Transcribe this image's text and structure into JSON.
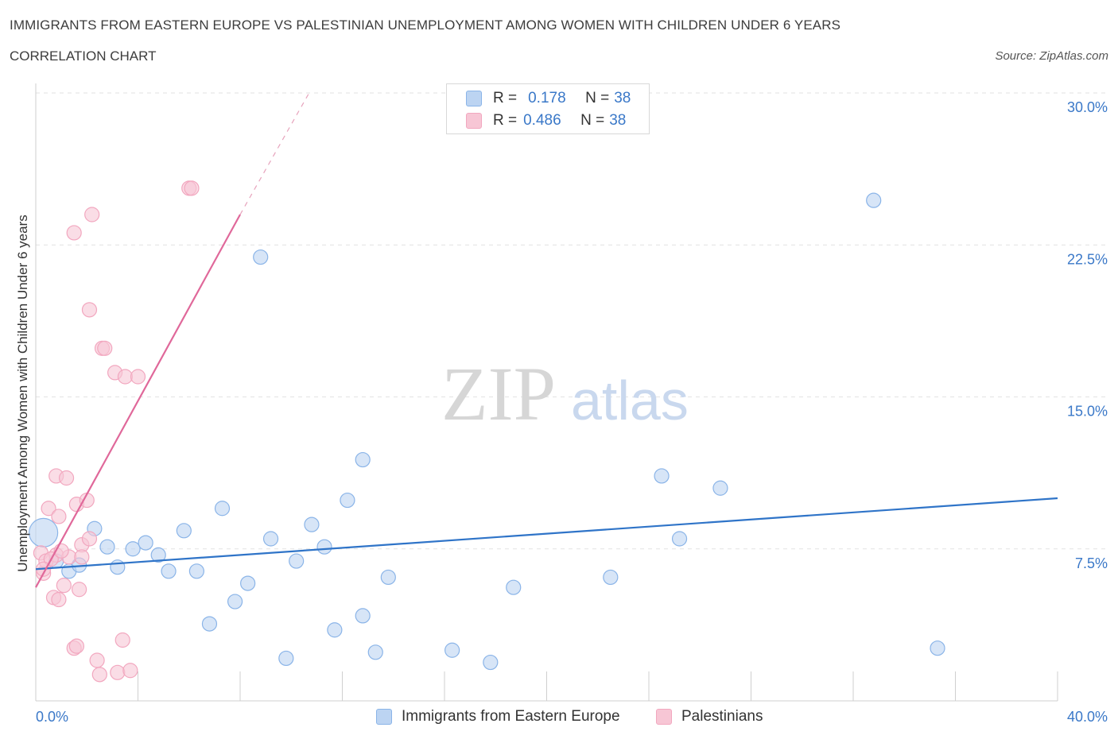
{
  "header": {
    "title": "IMMIGRANTS FROM EASTERN EUROPE VS PALESTINIAN UNEMPLOYMENT AMONG WOMEN WITH CHILDREN UNDER 6 YEARS",
    "subtitle": "CORRELATION CHART",
    "source": "Source: ZipAtlas.com"
  },
  "watermark": {
    "zip": "ZIP",
    "atlas": "atlas"
  },
  "legend": {
    "rows": [
      {
        "r_label": "R =",
        "r_value": "0.178",
        "n_label": "N =",
        "n_value": "38",
        "color": "#8ab4e8"
      },
      {
        "r_label": "R =",
        "r_value": "0.486",
        "n_label": "N =",
        "n_value": "38",
        "color": "#f2a7bf"
      }
    ]
  },
  "colors": {
    "blue_fill": "#bcd4f2",
    "blue_stroke": "#8ab4e8",
    "blue_line": "#2f74c8",
    "pink_fill": "#f7c6d5",
    "pink_stroke": "#f2a7bf",
    "pink_line": "#e0689a",
    "grid": "#e2e2e2",
    "tick_text": "#3a78c8"
  },
  "chart_data": {
    "type": "scatter",
    "title": "IMMIGRANTS FROM EASTERN EUROPE VS PALESTINIAN UNEMPLOYMENT AMONG WOMEN WITH CHILDREN UNDER 6 YEARS",
    "ylabel": "Unemployment Among Women with Children Under 6 years",
    "xlabel": "",
    "xlim": [
      0,
      40
    ],
    "ylim": [
      0,
      30
    ],
    "x_tick_labels": [
      "0.0%",
      "40.0%"
    ],
    "y_ticks": [
      7.5,
      15.0,
      22.5,
      30.0
    ],
    "y_tick_labels": [
      "7.5%",
      "15.0%",
      "22.5%",
      "30.0%"
    ],
    "grid": true,
    "legend_position": "top-center",
    "series": [
      {
        "name": "Immigrants from Eastern Europe",
        "color": "#8ab4e8",
        "points": [
          [
            0.3,
            8.3,
            2
          ],
          [
            0.8,
            6.9,
            1
          ],
          [
            1.3,
            6.4,
            1
          ],
          [
            1.7,
            6.7,
            1
          ],
          [
            2.3,
            8.5,
            1
          ],
          [
            2.8,
            7.6,
            1
          ],
          [
            3.2,
            6.6,
            1
          ],
          [
            3.8,
            7.5,
            1
          ],
          [
            4.3,
            7.8,
            1
          ],
          [
            4.8,
            7.2,
            1
          ],
          [
            5.2,
            6.4,
            1
          ],
          [
            5.8,
            8.4,
            1
          ],
          [
            6.3,
            6.4,
            1
          ],
          [
            6.8,
            3.8,
            1
          ],
          [
            7.3,
            9.5,
            1
          ],
          [
            7.8,
            4.9,
            1
          ],
          [
            8.3,
            5.8,
            1
          ],
          [
            8.8,
            21.9,
            1
          ],
          [
            9.2,
            8.0,
            1
          ],
          [
            9.8,
            2.1,
            1
          ],
          [
            10.2,
            6.9,
            1
          ],
          [
            10.8,
            8.7,
            1
          ],
          [
            11.3,
            7.6,
            1
          ],
          [
            11.7,
            3.5,
            1
          ],
          [
            12.2,
            9.9,
            1
          ],
          [
            12.8,
            4.2,
            1
          ],
          [
            12.8,
            11.9,
            1
          ],
          [
            13.8,
            6.1,
            1
          ],
          [
            13.3,
            2.4,
            1
          ],
          [
            16.3,
            2.5,
            1
          ],
          [
            17.8,
            1.9,
            1
          ],
          [
            18.7,
            5.6,
            1
          ],
          [
            22.5,
            6.1,
            1
          ],
          [
            24.5,
            11.1,
            1
          ],
          [
            25.2,
            8.0,
            1
          ],
          [
            26.8,
            10.5,
            1
          ],
          [
            32.8,
            24.7,
            1
          ],
          [
            35.3,
            2.6,
            1
          ]
        ]
      },
      {
        "name": "Palestinians",
        "color": "#f2a7bf",
        "points": [
          [
            0.2,
            7.3,
            1
          ],
          [
            0.3,
            6.3,
            1
          ],
          [
            0.4,
            6.9,
            1
          ],
          [
            0.5,
            9.5,
            1
          ],
          [
            0.7,
            5.1,
            1
          ],
          [
            0.8,
            7.2,
            1
          ],
          [
            0.8,
            11.1,
            1
          ],
          [
            0.9,
            9.1,
            1
          ],
          [
            0.9,
            5.0,
            1
          ],
          [
            1.1,
            5.7,
            1
          ],
          [
            1.2,
            11.0,
            1
          ],
          [
            1.3,
            7.1,
            1
          ],
          [
            1.5,
            2.6,
            1
          ],
          [
            1.6,
            2.7,
            1
          ],
          [
            1.5,
            23.1,
            1
          ],
          [
            1.6,
            9.7,
            1
          ],
          [
            1.7,
            5.5,
            1
          ],
          [
            1.8,
            7.7,
            1
          ],
          [
            1.8,
            7.1,
            1
          ],
          [
            2.0,
            9.9,
            1
          ],
          [
            2.1,
            8.0,
            1
          ],
          [
            2.2,
            24.0,
            1
          ],
          [
            2.1,
            19.3,
            1
          ],
          [
            2.4,
            2.0,
            1
          ],
          [
            2.5,
            1.3,
            1
          ],
          [
            2.6,
            17.4,
            1
          ],
          [
            2.7,
            17.4,
            1
          ],
          [
            3.1,
            16.2,
            1
          ],
          [
            3.2,
            1.4,
            1
          ],
          [
            3.4,
            3.0,
            1
          ],
          [
            3.5,
            16.0,
            1
          ],
          [
            3.7,
            1.5,
            1
          ],
          [
            4.0,
            16.0,
            1
          ],
          [
            6.0,
            25.3,
            1
          ],
          [
            6.1,
            25.3,
            1
          ],
          [
            0.6,
            7.0,
            1
          ],
          [
            1.0,
            7.4,
            1
          ],
          [
            0.3,
            6.5,
            1
          ]
        ]
      }
    ],
    "trendlines": [
      {
        "series": "Immigrants from Eastern Europe",
        "x": [
          0,
          40
        ],
        "y": [
          6.5,
          10.0
        ]
      },
      {
        "series": "Palestinians",
        "solid_x": [
          0,
          8
        ],
        "solid_y": [
          5.6,
          24.0
        ],
        "dashed_x": [
          8,
          10.7
        ],
        "dashed_y": [
          24.0,
          30.0
        ]
      }
    ]
  },
  "bottom_legend": [
    {
      "label": "Immigrants from Eastern Europe",
      "color": "#8ab4e8"
    },
    {
      "label": "Palestinians",
      "color": "#f2a7bf"
    }
  ]
}
